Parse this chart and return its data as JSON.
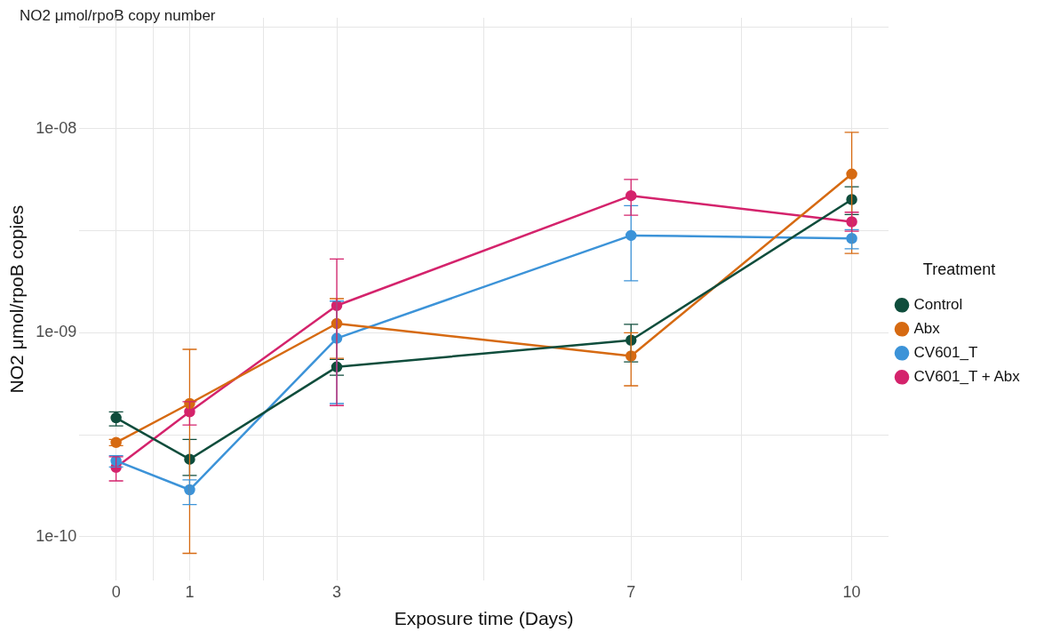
{
  "chart_data": {
    "type": "line",
    "title": "NO2 μmol/rpoB copy number",
    "xlabel": "Exposure time (Days)",
    "ylabel": "NO2 μmol/rpoB copies",
    "legend_title": "Treatment",
    "legend": "right",
    "grid": true,
    "marker": "circle",
    "line_style": "solid",
    "log": "y",
    "x": [
      0,
      1,
      3,
      7,
      10
    ],
    "xlim": [
      -0.5,
      10.5
    ],
    "xticks": [
      0,
      {
        "value": 0.5,
        "label": null
      },
      1,
      {
        "value": 2,
        "label": null
      },
      3,
      {
        "value": 5,
        "label": null
      },
      7,
      {
        "value": 8.5,
        "label": null
      },
      10
    ],
    "ylim": [
      6.1e-11,
      3.5e-08
    ],
    "yticks": [
      {
        "value": 1e-10,
        "label": "1e-10"
      },
      {
        "value": 3.16e-10,
        "label": null
      },
      {
        "value": 1e-09,
        "label": "1e-09"
      },
      {
        "value": 3.16e-09,
        "label": null
      },
      {
        "value": 1e-08,
        "label": "1e-08"
      },
      {
        "value": 3.16e-08,
        "label": null
      }
    ],
    "series": [
      {
        "name": "Control",
        "color": "#0f4d3c",
        "values": [
          3.83e-10,
          2.4e-10,
          6.8e-10,
          9.2e-10,
          4.5e-09
        ],
        "errors": [
          [
            3.5e-10,
            4.1e-10
          ],
          [
            2e-10,
            3e-10
          ],
          [
            6.2e-10,
            7.4e-10
          ],
          [
            7.2e-10,
            1.1e-09
          ],
          [
            3.8e-09,
            5.2e-09
          ]
        ]
      },
      {
        "name": "Abx",
        "color": "#d66a12",
        "values": [
          2.9e-10,
          4.5e-10,
          1.11e-09,
          7.7e-10,
          6e-09
        ],
        "errors": [
          [
            2.8e-10,
            3e-10
          ],
          [
            8.3e-11,
            8.3e-10
          ],
          [
            7.5e-10,
            1.47e-09
          ],
          [
            5.5e-10,
            1e-09
          ],
          [
            2.45e-09,
            9.6e-09
          ]
        ]
      },
      {
        "name": "CV601_T",
        "color": "#3c93d8",
        "values": [
          2.36e-10,
          1.7e-10,
          9.4e-10,
          3e-09,
          2.9e-09
        ],
        "errors": [
          [
            2.2e-10,
            2.5e-10
          ],
          [
            1.44e-10,
            1.9e-10
          ],
          [
            4.5e-10,
            1.43e-09
          ],
          [
            1.8e-09,
            4.2e-09
          ],
          [
            2.58e-09,
            3.2e-09
          ]
        ]
      },
      {
        "name": "CV601_T + Abx",
        "color": "#d4236c",
        "values": [
          2.19e-10,
          4.1e-10,
          1.36e-09,
          4.7e-09,
          3.5e-09
        ],
        "errors": [
          [
            1.88e-10,
            2.47e-10
          ],
          [
            3.53e-10,
            4.6e-10
          ],
          [
            4.4e-10,
            2.3e-09
          ],
          [
            3.77e-09,
            5.64e-09
          ],
          [
            3.15e-09,
            3.9e-09
          ]
        ]
      }
    ]
  }
}
